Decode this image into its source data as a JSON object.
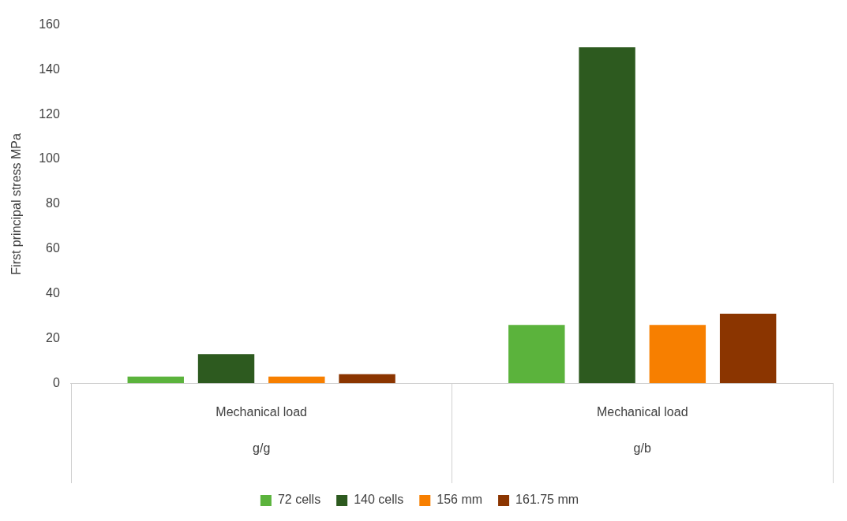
{
  "chart_data": {
    "type": "bar",
    "ylabel": "First principal stress MPa",
    "categories": [
      "Mechanical load\ng/g",
      "Mechanical load\ng/b"
    ],
    "series": [
      {
        "name": "72 cells",
        "color": "#5bb33c",
        "values": [
          3,
          26
        ]
      },
      {
        "name": "140 cells",
        "color": "#2d5a1f",
        "values": [
          13,
          150
        ]
      },
      {
        "name": "156 mm",
        "color": "#f77f00",
        "values": [
          3,
          26
        ]
      },
      {
        "name": "161.75 mm",
        "color": "#8b3500",
        "values": [
          4,
          31
        ]
      }
    ],
    "ylim": [
      0,
      160
    ],
    "yticks": [
      0,
      20,
      40,
      60,
      80,
      100,
      120,
      140,
      160
    ],
    "grid": false,
    "legend": "bottom"
  }
}
